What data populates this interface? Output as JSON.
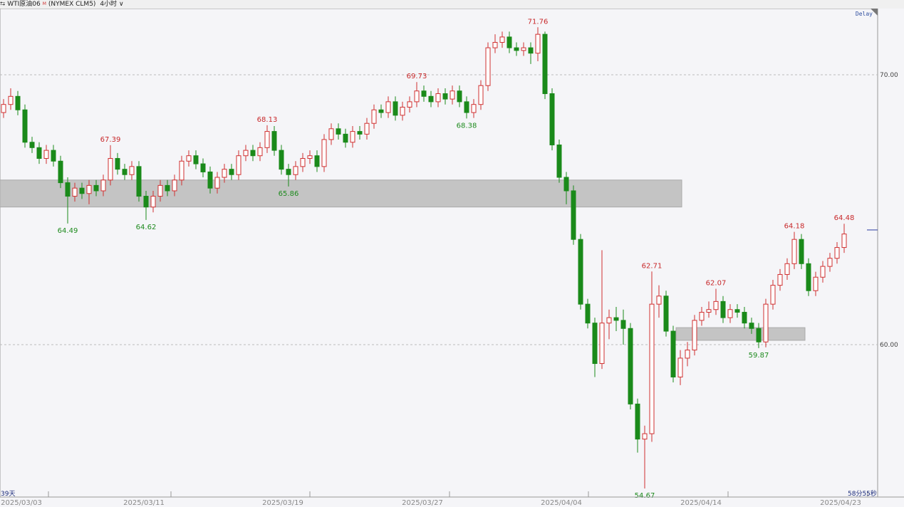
{
  "header": {
    "link_icon": "link-icon",
    "symbol": "WTI原油06",
    "symbol_sup": "M",
    "exchange": "(NYMEX CLM5)",
    "interval": "4小时",
    "interval_icon": "chevron-down-icon"
  },
  "delay_label": "Delay",
  "days_label": "39天",
  "countdown_label": "58分55秒",
  "colors": {
    "up": "#d03030",
    "down": "#1a8a1a",
    "zone": "#c4c4c4",
    "current_price_line": "#2a3aa0"
  },
  "chart_data": {
    "type": "candlestick",
    "interval": "4h",
    "ylim": [
      53.8,
      72.8
    ],
    "y_ticks": [
      {
        "value": 70,
        "label": "70.00"
      },
      {
        "value": 60,
        "label": "60.00"
      }
    ],
    "grid": "dashed horizontal at ticks",
    "x_ticks": [
      {
        "index": 2.5,
        "label": "2025/03/03"
      },
      {
        "index": 19.7,
        "label": "2025/03/11"
      },
      {
        "index": 39.2,
        "label": "2025/03/19"
      },
      {
        "index": 58.8,
        "label": "2025/03/27"
      },
      {
        "index": 78.3,
        "label": "2025/04/04"
      },
      {
        "index": 97.9,
        "label": "2025/04/14"
      },
      {
        "index": 117.5,
        "label": "2025/04/23"
      }
    ],
    "current_price": 64.25,
    "zones": [
      {
        "low": 65.1,
        "high": 66.1,
        "from_index": -0.5,
        "to_index": 95.2
      },
      {
        "low": 60.16,
        "high": 60.63,
        "from_index": 94.4,
        "to_index": 112.5
      }
    ],
    "annotations": [
      {
        "index": 9,
        "value": 64.49,
        "label": "64.49",
        "kind": "low"
      },
      {
        "index": 15,
        "value": 67.39,
        "label": "67.39",
        "kind": "high"
      },
      {
        "index": 20,
        "value": 64.62,
        "label": "64.62",
        "kind": "low"
      },
      {
        "index": 37,
        "value": 68.13,
        "label": "68.13",
        "kind": "high"
      },
      {
        "index": 40,
        "value": 65.86,
        "label": "65.86",
        "kind": "low"
      },
      {
        "index": 58,
        "value": 69.73,
        "label": "69.73",
        "kind": "high"
      },
      {
        "index": 65,
        "value": 68.38,
        "label": "68.38",
        "kind": "low"
      },
      {
        "index": 75,
        "value": 71.76,
        "label": "71.76",
        "kind": "high"
      },
      {
        "index": 90,
        "value": 54.67,
        "label": "54.67",
        "kind": "low"
      },
      {
        "index": 91,
        "value": 62.71,
        "label": "62.71",
        "kind": "high"
      },
      {
        "index": 100,
        "value": 62.07,
        "label": "62.07",
        "kind": "high"
      },
      {
        "index": 106,
        "value": 59.87,
        "label": "59.87",
        "kind": "low"
      },
      {
        "index": 111,
        "value": 64.18,
        "label": "64.18",
        "kind": "high"
      },
      {
        "index": 118,
        "value": 64.48,
        "label": "64.48",
        "kind": "high"
      }
    ],
    "ohlc": [
      [
        68.6,
        69.1,
        68.4,
        68.9
      ],
      [
        68.9,
        69.5,
        68.7,
        69.2
      ],
      [
        69.2,
        69.4,
        68.5,
        68.7
      ],
      [
        68.7,
        68.9,
        67.3,
        67.5
      ],
      [
        67.5,
        67.7,
        67.1,
        67.3
      ],
      [
        67.3,
        67.5,
        66.7,
        66.9
      ],
      [
        66.9,
        67.4,
        66.7,
        67.2
      ],
      [
        67.2,
        67.4,
        66.6,
        66.8
      ],
      [
        66.8,
        67.0,
        65.8,
        66.0
      ],
      [
        66.0,
        66.2,
        64.49,
        65.5
      ],
      [
        65.5,
        66.0,
        65.3,
        65.8
      ],
      [
        65.8,
        66.0,
        65.4,
        65.6
      ],
      [
        65.6,
        66.1,
        65.2,
        65.9
      ],
      [
        65.9,
        66.1,
        65.5,
        65.7
      ],
      [
        65.7,
        66.3,
        65.5,
        66.1
      ],
      [
        66.1,
        67.39,
        65.9,
        66.9
      ],
      [
        66.9,
        67.1,
        66.3,
        66.5
      ],
      [
        66.5,
        66.7,
        66.1,
        66.3
      ],
      [
        66.3,
        66.8,
        66.1,
        66.6
      ],
      [
        66.6,
        66.8,
        65.3,
        65.5
      ],
      [
        65.5,
        65.7,
        64.62,
        65.1
      ],
      [
        65.1,
        65.7,
        64.9,
        65.5
      ],
      [
        65.5,
        66.1,
        65.3,
        65.9
      ],
      [
        65.9,
        66.1,
        65.5,
        65.7
      ],
      [
        65.7,
        66.3,
        65.5,
        66.1
      ],
      [
        66.1,
        67.0,
        65.9,
        66.8
      ],
      [
        66.8,
        67.2,
        66.6,
        67.0
      ],
      [
        67.0,
        67.2,
        66.5,
        66.7
      ],
      [
        66.7,
        66.9,
        66.2,
        66.4
      ],
      [
        66.4,
        66.6,
        65.6,
        65.8
      ],
      [
        65.8,
        66.4,
        65.6,
        66.2
      ],
      [
        66.2,
        66.7,
        66.0,
        66.5
      ],
      [
        66.5,
        66.7,
        66.1,
        66.3
      ],
      [
        66.3,
        67.2,
        66.1,
        67.0
      ],
      [
        67.0,
        67.4,
        66.8,
        67.2
      ],
      [
        67.2,
        67.4,
        66.8,
        67.0
      ],
      [
        67.0,
        67.5,
        66.8,
        67.3
      ],
      [
        67.3,
        68.13,
        67.1,
        67.9
      ],
      [
        67.9,
        68.1,
        67.0,
        67.2
      ],
      [
        67.2,
        67.4,
        66.3,
        66.5
      ],
      [
        66.5,
        66.7,
        65.86,
        66.3
      ],
      [
        66.3,
        66.8,
        66.1,
        66.6
      ],
      [
        66.6,
        67.1,
        66.4,
        66.9
      ],
      [
        66.9,
        67.2,
        66.7,
        67.0
      ],
      [
        67.0,
        67.2,
        66.4,
        66.6
      ],
      [
        66.6,
        67.8,
        66.4,
        67.6
      ],
      [
        67.6,
        68.2,
        67.4,
        68.0
      ],
      [
        68.0,
        68.2,
        67.6,
        67.8
      ],
      [
        67.8,
        68.0,
        67.3,
        67.5
      ],
      [
        67.5,
        68.1,
        67.3,
        67.9
      ],
      [
        67.9,
        68.1,
        67.6,
        67.8
      ],
      [
        67.8,
        68.4,
        67.6,
        68.2
      ],
      [
        68.2,
        68.9,
        68.0,
        68.7
      ],
      [
        68.7,
        68.9,
        68.4,
        68.6
      ],
      [
        68.6,
        69.2,
        68.4,
        69.0
      ],
      [
        69.0,
        69.2,
        68.3,
        68.5
      ],
      [
        68.5,
        69.0,
        68.3,
        68.8
      ],
      [
        68.8,
        69.2,
        68.6,
        69.0
      ],
      [
        69.0,
        69.73,
        68.8,
        69.4
      ],
      [
        69.4,
        69.6,
        69.0,
        69.2
      ],
      [
        69.2,
        69.4,
        68.8,
        69.0
      ],
      [
        69.0,
        69.5,
        68.8,
        69.3
      ],
      [
        69.3,
        69.5,
        68.9,
        69.1
      ],
      [
        69.1,
        69.6,
        68.9,
        69.4
      ],
      [
        69.4,
        69.6,
        68.8,
        69.0
      ],
      [
        69.0,
        69.2,
        68.38,
        68.6
      ],
      [
        68.6,
        69.1,
        68.4,
        68.9
      ],
      [
        68.9,
        69.8,
        68.7,
        69.6
      ],
      [
        69.6,
        71.2,
        69.4,
        71.0
      ],
      [
        71.0,
        71.5,
        70.8,
        71.2
      ],
      [
        71.2,
        71.6,
        71.0,
        71.4
      ],
      [
        71.4,
        71.6,
        70.8,
        71.0
      ],
      [
        71.0,
        71.2,
        70.7,
        70.9
      ],
      [
        70.9,
        71.2,
        70.7,
        71.0
      ],
      [
        71.0,
        71.2,
        70.4,
        70.8
      ],
      [
        70.8,
        71.76,
        70.5,
        71.5
      ],
      [
        71.5,
        71.6,
        69.1,
        69.3
      ],
      [
        69.3,
        69.5,
        67.2,
        67.4
      ],
      [
        67.4,
        67.6,
        66.0,
        66.2
      ],
      [
        66.2,
        66.4,
        65.2,
        65.7
      ],
      [
        65.7,
        65.9,
        63.7,
        63.9
      ],
      [
        63.9,
        64.1,
        61.3,
        61.5
      ],
      [
        61.5,
        61.7,
        60.6,
        60.8
      ],
      [
        60.8,
        61.0,
        58.8,
        59.3
      ],
      [
        59.3,
        63.5,
        59.1,
        60.8
      ],
      [
        60.8,
        61.3,
        60.2,
        61.0
      ],
      [
        61.0,
        61.4,
        60.5,
        60.9
      ],
      [
        60.9,
        61.3,
        60.0,
        60.6
      ],
      [
        60.6,
        60.8,
        57.6,
        57.8
      ],
      [
        57.8,
        58.0,
        56.0,
        56.5
      ],
      [
        56.5,
        57.0,
        54.67,
        56.7
      ],
      [
        56.7,
        62.71,
        56.4,
        61.5
      ],
      [
        61.5,
        62.2,
        61.0,
        61.8
      ],
      [
        61.8,
        62.0,
        60.3,
        60.5
      ],
      [
        60.5,
        60.7,
        58.6,
        58.8
      ],
      [
        58.8,
        59.8,
        58.5,
        59.5
      ],
      [
        59.5,
        60.1,
        59.2,
        59.8
      ],
      [
        59.8,
        61.1,
        59.6,
        60.9
      ],
      [
        60.9,
        61.4,
        60.7,
        61.2
      ],
      [
        61.2,
        61.6,
        61.0,
        61.3
      ],
      [
        61.3,
        62.07,
        61.1,
        61.6
      ],
      [
        61.6,
        61.8,
        60.8,
        61.0
      ],
      [
        61.0,
        61.5,
        60.8,
        61.3
      ],
      [
        61.3,
        61.5,
        61.0,
        61.2
      ],
      [
        61.2,
        61.4,
        60.6,
        60.8
      ],
      [
        60.8,
        61.0,
        60.4,
        60.6
      ],
      [
        60.6,
        60.8,
        59.87,
        60.1
      ],
      [
        60.1,
        61.7,
        59.9,
        61.5
      ],
      [
        61.5,
        62.4,
        61.3,
        62.2
      ],
      [
        62.2,
        62.8,
        62.0,
        62.6
      ],
      [
        62.6,
        63.2,
        62.4,
        63.0
      ],
      [
        63.0,
        64.18,
        62.8,
        63.9
      ],
      [
        63.9,
        64.1,
        62.8,
        63.0
      ],
      [
        63.0,
        63.2,
        61.8,
        62.0
      ],
      [
        62.0,
        62.7,
        61.8,
        62.5
      ],
      [
        62.5,
        63.1,
        62.3,
        62.9
      ],
      [
        62.9,
        63.4,
        62.7,
        63.2
      ],
      [
        63.2,
        63.8,
        63.0,
        63.6
      ],
      [
        63.6,
        64.48,
        63.4,
        64.1
      ]
    ]
  }
}
